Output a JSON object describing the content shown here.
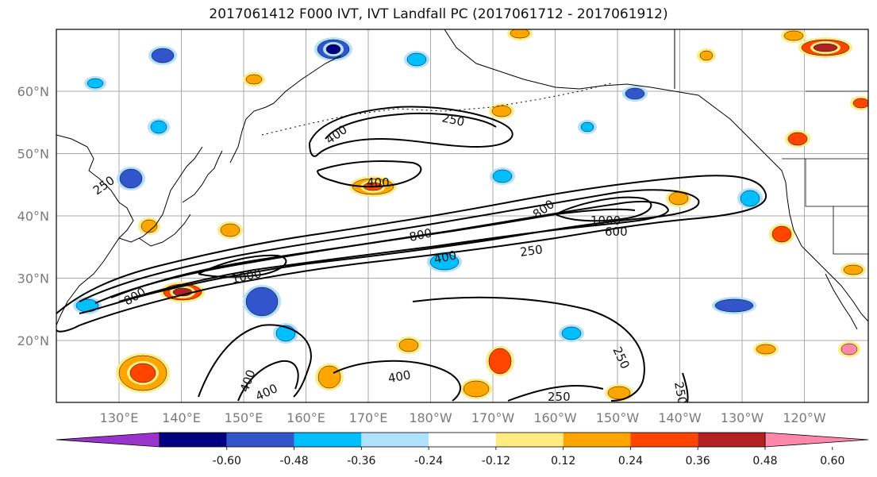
{
  "title": "2017061412 F000 IVT, IVT Landfall PC (2017061712 - 2017061912)",
  "lon_labels": [
    "130°E",
    "140°E",
    "150°E",
    "160°E",
    "170°E",
    "180°W",
    "170°W",
    "160°W",
    "150°W",
    "140°W",
    "130°W",
    "120°W"
  ],
  "lat_labels": [
    "60°N",
    "50°N",
    "40°N",
    "30°N",
    "20°N"
  ],
  "colorbar": {
    "colors": [
      "#9933cc",
      "#000080",
      "#3355cc",
      "#00bfff",
      "#b0e2ff",
      "#ffffff",
      "#ffeb80",
      "#ffa500",
      "#ff4500",
      "#b22222",
      "#ff88aa"
    ],
    "tick_labels": [
      "-0.60",
      "-0.48",
      "-0.36",
      "-0.24",
      "-0.12",
      "0.12",
      "0.24",
      "0.36",
      "0.48",
      "0.60"
    ],
    "extend": "both"
  },
  "contour_labels": [
    "250",
    "400",
    "400",
    "250",
    "800",
    "1000",
    "600",
    "800",
    "400",
    "250",
    "1000",
    "800",
    "400",
    "250",
    "400",
    "400",
    "250",
    "250"
  ]
}
